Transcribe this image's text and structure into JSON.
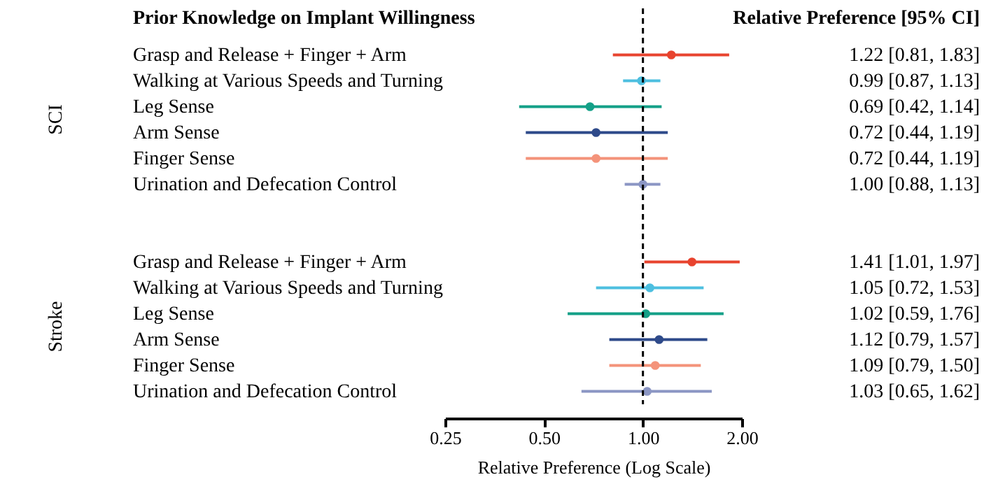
{
  "chart_data": {
    "type": "scatter",
    "orientation": "horizontal",
    "title": "Prior Knowledge on Implant Willingness",
    "xlabel": "Relative Preference (Log Scale)",
    "annotations": [
      "Relative Preference [95% CI]",
      "SCI",
      "Stroke"
    ],
    "categories": [
      "Grasp and Release + Finger + Arm",
      "Walking at Various Speeds and Turning",
      "Leg Sense",
      "Arm Sense",
      "Finger Sense",
      "Urination and Defecation Control",
      null,
      null,
      "Grasp and Release + Finger + Arm",
      "Walking at Various Speeds and Turning",
      "Leg Sense",
      "Arm Sense",
      "Finger Sense",
      "Urination and Defecation Control"
    ],
    "values": [
      1.22,
      0.99,
      0.69,
      0.72,
      0.72,
      1.0,
      null,
      null,
      1.41,
      1.05,
      1.02,
      1.12,
      1.09,
      1.03
    ],
    "errors": [
      [
        0.81,
        1.83
      ],
      [
        0.87,
        1.13
      ],
      [
        0.42,
        1.14
      ],
      [
        0.44,
        1.19
      ],
      [
        0.44,
        1.19
      ],
      [
        0.88,
        1.13
      ],
      null,
      null,
      [
        1.01,
        1.97
      ],
      [
        0.72,
        1.53
      ],
      [
        0.59,
        1.76
      ],
      [
        0.79,
        1.57
      ],
      [
        0.79,
        1.5
      ],
      [
        0.65,
        1.62
      ]
    ],
    "value_labels": [
      "1.22 [0.81, 1.83]",
      "0.99 [0.87, 1.13]",
      "0.69 [0.42, 1.14]",
      "0.72 [0.44, 1.19]",
      "0.72 [0.44, 1.19]",
      "1.00 [0.88, 1.13]",
      null,
      null,
      "1.41 [1.01, 1.97]",
      "1.05 [0.72, 1.53]",
      "1.02 [0.59, 1.76]",
      "1.12 [0.79, 1.57]",
      "1.09 [0.79, 1.50]",
      "1.03 [0.65, 1.62]"
    ],
    "colors": [
      "#e8432e",
      "#4dbfe0",
      "#14a088",
      "#2e4a8a",
      "#f4937a",
      "#8b96c4",
      null,
      null,
      "#e8432e",
      "#4dbfe0",
      "#14a088",
      "#2e4a8a",
      "#f4937a",
      "#8b96c4"
    ],
    "log": "x",
    "xlim": [
      0.25,
      2.0
    ],
    "xticks": [
      0.25,
      {
        "value": 0.5,
        "label": "0.50"
      },
      {
        "value": 1.0,
        "label": "1.00"
      },
      {
        "value": 2.0,
        "label": "2.00"
      }
    ],
    "ref_lines": [
      {
        "axis": "x",
        "value": 1.0,
        "color": "#000000",
        "line_style": "dashed"
      }
    ],
    "marker": "circle",
    "grid": false
  }
}
